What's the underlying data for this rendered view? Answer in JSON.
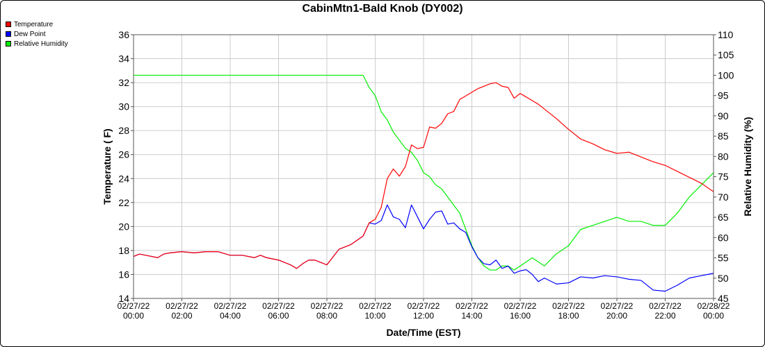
{
  "chart_data": {
    "type": "line",
    "title": "CabinMtn1-Bald Knob (DY002)",
    "xlabel": "Date/Time (EST)",
    "ylabel": "Temperature ( F)",
    "y2label": "Relative Humidity (%)",
    "ylim": [
      14,
      36
    ],
    "y2lim": [
      45,
      110
    ],
    "yticks": [
      "14",
      "16",
      "18",
      "20",
      "22",
      "24",
      "26",
      "28",
      "30",
      "32",
      "34",
      "36"
    ],
    "y2ticks": [
      "45",
      "50",
      "55",
      "60",
      "65",
      "70",
      "75",
      "80",
      "85",
      "90",
      "95",
      "100",
      "105",
      "110"
    ],
    "xticks": [
      {
        "date": "02/27/22",
        "time": "00:00"
      },
      {
        "date": "02/27/22",
        "time": "02:00"
      },
      {
        "date": "02/27/22",
        "time": "04:00"
      },
      {
        "date": "02/27/22",
        "time": "06:00"
      },
      {
        "date": "02/27/22",
        "time": "08:00"
      },
      {
        "date": "02/27/22",
        "time": "10:00"
      },
      {
        "date": "02/27/22",
        "time": "12:00"
      },
      {
        "date": "02/27/22",
        "time": "14:00"
      },
      {
        "date": "02/27/22",
        "time": "16:00"
      },
      {
        "date": "02/27/22",
        "time": "18:00"
      },
      {
        "date": "02/27/22",
        "time": "20:00"
      },
      {
        "date": "02/27/22",
        "time": "22:00"
      },
      {
        "date": "02/28/22",
        "time": "00:00"
      }
    ],
    "grid": true,
    "legend_position": "top-left",
    "series": [
      {
        "name": "Temperature",
        "axis": "left",
        "color": "#ff0000",
        "x_hours": [
          0,
          0.25,
          0.5,
          1,
          1.25,
          1.5,
          2,
          2.5,
          3,
          3.5,
          4,
          4.5,
          5,
          5.25,
          5.5,
          6,
          6.5,
          6.75,
          7,
          7.25,
          7.5,
          8,
          8.5,
          9,
          9.5,
          9.75,
          10,
          10.25,
          10.5,
          10.75,
          11,
          11.25,
          11.5,
          11.75,
          12,
          12.25,
          12.5,
          12.75,
          13,
          13.25,
          13.5,
          13.75,
          14,
          14.25,
          14.5,
          14.75,
          15,
          15.25,
          15.5,
          15.75,
          16,
          16.25,
          16.5,
          16.75,
          17,
          17.5,
          18,
          18.5,
          19,
          19.5,
          20,
          20.5,
          21,
          21.5,
          22,
          22.5,
          23,
          23.5,
          24
        ],
        "values": [
          17.5,
          17.7,
          17.6,
          17.4,
          17.7,
          17.8,
          17.9,
          17.8,
          17.9,
          17.9,
          17.6,
          17.6,
          17.4,
          17.6,
          17.4,
          17.2,
          16.8,
          16.5,
          16.9,
          17.2,
          17.2,
          16.8,
          18.1,
          18.5,
          19.2,
          20.3,
          20.6,
          21.6,
          24.0,
          24.8,
          24.2,
          25.0,
          26.8,
          26.5,
          26.6,
          28.3,
          28.2,
          28.6,
          29.4,
          29.6,
          30.6,
          30.9,
          31.2,
          31.5,
          31.7,
          31.9,
          32.0,
          31.7,
          31.6,
          30.7,
          31.1,
          30.8,
          30.5,
          30.2,
          29.8,
          29.0,
          28.1,
          27.3,
          26.9,
          26.4,
          26.1,
          26.2,
          25.8,
          25.4,
          25.1,
          24.6,
          24.1,
          23.6,
          22.9
        ]
      },
      {
        "name": "Dew Point",
        "axis": "left",
        "color": "#0000ff",
        "x_hours": [
          0,
          0.25,
          0.5,
          1,
          1.25,
          1.5,
          2,
          2.5,
          3,
          3.5,
          4,
          4.5,
          5,
          5.25,
          5.5,
          6,
          6.5,
          6.75,
          7,
          7.25,
          7.5,
          8,
          8.5,
          9,
          9.5,
          9.75,
          10,
          10.25,
          10.5,
          10.75,
          11,
          11.25,
          11.5,
          11.75,
          12,
          12.25,
          12.5,
          12.75,
          13,
          13.25,
          13.5,
          13.75,
          14,
          14.25,
          14.5,
          14.75,
          15,
          15.25,
          15.5,
          15.75,
          16,
          16.25,
          16.5,
          16.75,
          17,
          17.5,
          18,
          18.5,
          19,
          19.5,
          20,
          20.5,
          21,
          21.5,
          22,
          22.5,
          23,
          23.5,
          24
        ],
        "values": [
          17.5,
          17.7,
          17.6,
          17.4,
          17.7,
          17.8,
          17.9,
          17.8,
          17.9,
          17.9,
          17.6,
          17.6,
          17.4,
          17.6,
          17.4,
          17.2,
          16.8,
          16.5,
          16.9,
          17.2,
          17.2,
          16.8,
          18.1,
          18.5,
          19.2,
          20.3,
          20.2,
          20.5,
          21.8,
          20.8,
          20.6,
          19.9,
          21.8,
          20.8,
          19.8,
          20.6,
          21.2,
          21.3,
          20.2,
          20.3,
          19.8,
          19.5,
          18.3,
          17.4,
          16.9,
          16.8,
          17.2,
          16.5,
          16.7,
          16.1,
          16.3,
          16.4,
          16.0,
          15.4,
          15.7,
          15.2,
          15.3,
          15.8,
          15.7,
          15.9,
          15.8,
          15.6,
          15.5,
          14.7,
          14.6,
          15.1,
          15.7,
          15.9,
          16.1
        ]
      },
      {
        "name": "Relative Humidity",
        "axis": "right",
        "color": "#00ee00",
        "x_hours": [
          0,
          1,
          2,
          3,
          4,
          5,
          6,
          7,
          8,
          9,
          9.5,
          9.75,
          10,
          10.25,
          10.5,
          10.75,
          11,
          11.25,
          11.5,
          11.75,
          12,
          12.25,
          12.5,
          12.75,
          13,
          13.25,
          13.5,
          13.75,
          14,
          14.25,
          14.5,
          14.75,
          15,
          15.25,
          15.5,
          15.75,
          16,
          16.25,
          16.5,
          16.75,
          17,
          17.5,
          18,
          18.5,
          19,
          19.5,
          20,
          20.5,
          21,
          21.5,
          22,
          22.5,
          23,
          23.5,
          24
        ],
        "values": [
          100,
          100,
          100,
          100,
          100,
          100,
          100,
          100,
          100,
          100,
          100,
          97,
          95,
          91,
          89,
          86,
          84,
          82,
          81,
          79,
          76,
          75,
          73,
          72,
          70,
          68,
          66,
          62,
          58,
          55,
          53,
          52,
          52,
          53,
          53,
          52,
          53,
          54,
          55,
          54,
          53,
          56,
          58,
          62,
          63,
          64,
          65,
          64,
          64,
          63,
          63,
          66,
          70,
          73,
          76
        ]
      }
    ]
  }
}
